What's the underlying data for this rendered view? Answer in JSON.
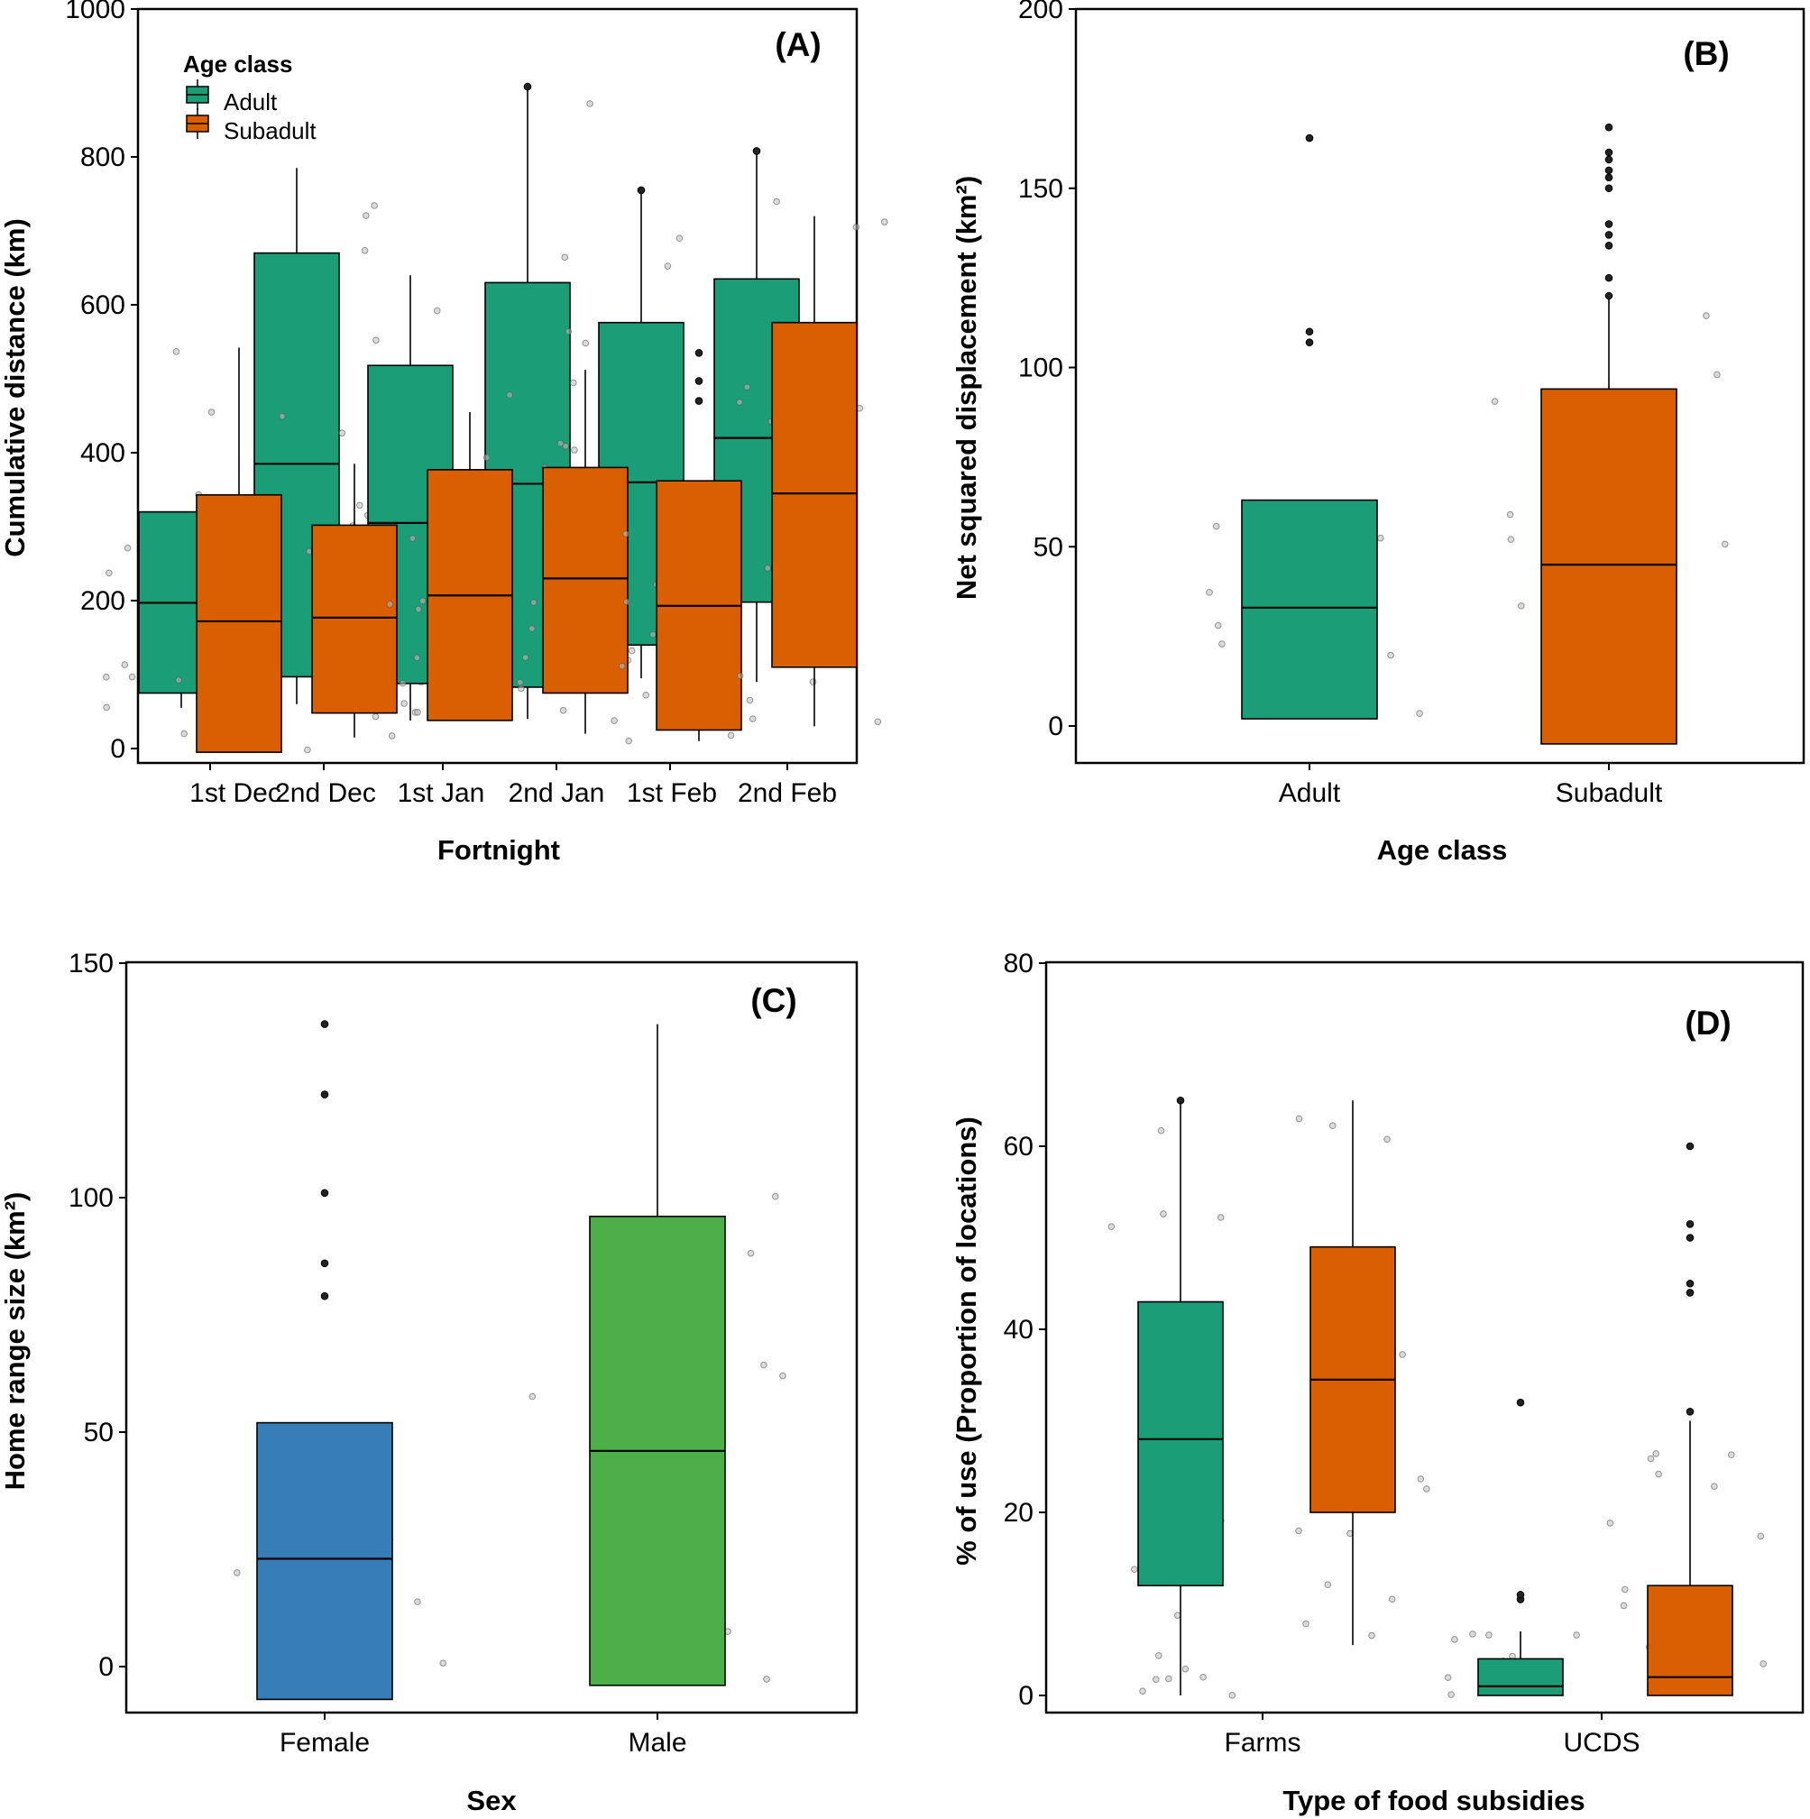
{
  "colors": {
    "adult": "#1b9e77",
    "subadult": "#d95f02",
    "female": "#377eb8",
    "male": "#4daf4a",
    "frame": "#000000",
    "jitter": "#8c8c8c"
  },
  "chart_data": [
    {
      "panel": "(A)",
      "type": "boxplot",
      "xlabel": "Fortnight",
      "ylabel": "Cumulative distance (km)",
      "ylim": [
        -20,
        1000
      ],
      "yticks": [
        0,
        200,
        400,
        600,
        800,
        1000
      ],
      "categories": [
        "1st Dec",
        "2nd Dec",
        "1st Jan",
        "2nd Jan",
        "1st Feb",
        "2nd Feb"
      ],
      "legend": {
        "title": "Age class",
        "entries": [
          "Adult",
          "Subadult"
        ],
        "position": "top-left"
      },
      "series": [
        {
          "name": "Adult",
          "color_key": "adult",
          "boxes": [
            {
              "whisker_low": 55,
              "q1": 75,
              "median": 197,
              "q3": 320,
              "whisker_high": 320,
              "outliers": []
            },
            {
              "whisker_low": 60,
              "q1": 97,
              "median": 385,
              "q3": 670,
              "whisker_high": 785,
              "outliers": []
            },
            {
              "whisker_low": 38,
              "q1": 88,
              "median": 305,
              "q3": 518,
              "whisker_high": 640,
              "outliers": []
            },
            {
              "whisker_low": 40,
              "q1": 83,
              "median": 358,
              "q3": 630,
              "whisker_high": 895,
              "outliers": [
                895
              ]
            },
            {
              "whisker_low": 95,
              "q1": 140,
              "median": 360,
              "q3": 576,
              "whisker_high": 755,
              "outliers": [
                755
              ]
            },
            {
              "whisker_low": 90,
              "q1": 198,
              "median": 420,
              "q3": 635,
              "whisker_high": 808,
              "outliers": [
                808
              ]
            }
          ]
        },
        {
          "name": "Subadult",
          "color_key": "subadult",
          "boxes": [
            {
              "whisker_low": -5,
              "q1": -5,
              "median": 172,
              "q3": 343,
              "whisker_high": 542,
              "outliers": []
            },
            {
              "whisker_low": 15,
              "q1": 48,
              "median": 177,
              "q3": 302,
              "whisker_high": 385,
              "outliers": []
            },
            {
              "whisker_low": 38,
              "q1": 38,
              "median": 207,
              "q3": 377,
              "whisker_high": 455,
              "outliers": []
            },
            {
              "whisker_low": 20,
              "q1": 75,
              "median": 230,
              "q3": 380,
              "whisker_high": 512,
              "outliers": []
            },
            {
              "whisker_low": 10,
              "q1": 25,
              "median": 193,
              "q3": 362,
              "whisker_high": 362,
              "outliers": [
                470,
                497,
                535
              ]
            },
            {
              "whisker_low": 30,
              "q1": 110,
              "median": 345,
              "q3": 576,
              "whisker_high": 720,
              "outliers": []
            }
          ]
        }
      ]
    },
    {
      "panel": "(B)",
      "type": "boxplot",
      "xlabel": "Age class",
      "ylabel": "Net squared displacement (km²)",
      "ylim": [
        -10,
        200
      ],
      "yticks": [
        0,
        50,
        100,
        150,
        200
      ],
      "categories": [
        "Adult",
        "Subadult"
      ],
      "series": [
        {
          "name": "Age class",
          "color_keys": [
            "adult",
            "subadult"
          ],
          "boxes": [
            {
              "whisker_low": 2,
              "q1": 2,
              "median": 33,
              "q3": 63,
              "whisker_high": 63,
              "outliers": [
                107,
                110,
                164
              ]
            },
            {
              "whisker_low": -5,
              "q1": -5,
              "median": 45,
              "q3": 94,
              "whisker_high": 119,
              "outliers": [
                120,
                125,
                134,
                137,
                140,
                150,
                153,
                155,
                158,
                160,
                167
              ]
            }
          ]
        }
      ]
    },
    {
      "panel": "(C)",
      "type": "boxplot",
      "xlabel": "Sex",
      "ylabel": "Home range size (km²)",
      "ylim": [
        -8,
        150
      ],
      "yticks": [
        0,
        50,
        100,
        150
      ],
      "categories": [
        "Female",
        "Male"
      ],
      "series": [
        {
          "name": "Sex",
          "color_keys": [
            "female",
            "male"
          ],
          "boxes": [
            {
              "whisker_low": -7,
              "q1": -7,
              "median": 23,
              "q3": 52,
              "whisker_high": 52,
              "outliers": [
                79,
                86,
                101,
                122,
                137
              ]
            },
            {
              "whisker_low": -4,
              "q1": -4,
              "median": 46,
              "q3": 96,
              "whisker_high": 137,
              "outliers": []
            }
          ]
        }
      ]
    },
    {
      "panel": "(D)",
      "type": "boxplot",
      "xlabel": "Type of food subsidies",
      "ylabel": "% of use (Proportion of locations)",
      "ylim": [
        -1,
        80
      ],
      "yticks": [
        0,
        20,
        40,
        60,
        80
      ],
      "categories": [
        "Farms",
        "UCDS"
      ],
      "series": [
        {
          "name": "Adult",
          "color_key": "adult",
          "boxes": [
            {
              "whisker_low": 0,
              "q1": 12,
              "median": 28,
              "q3": 43,
              "whisker_high": 65,
              "outliers": [
                65
              ]
            },
            {
              "whisker_low": 0,
              "q1": 0,
              "median": 1,
              "q3": 4,
              "whisker_high": 7,
              "outliers": [
                10.5,
                11,
                32
              ]
            }
          ]
        },
        {
          "name": "Subadult",
          "color_key": "subadult",
          "boxes": [
            {
              "whisker_low": 5.5,
              "q1": 20,
              "median": 34.5,
              "q3": 49,
              "whisker_high": 65,
              "outliers": []
            },
            {
              "whisker_low": 0,
              "q1": 0,
              "median": 2,
              "q3": 12,
              "whisker_high": 30,
              "outliers": [
                31,
                44,
                45,
                50,
                51.5,
                60
              ]
            }
          ]
        }
      ]
    }
  ]
}
